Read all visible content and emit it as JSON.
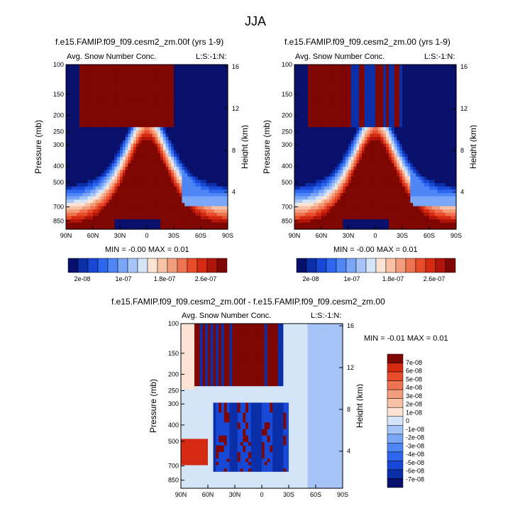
{
  "figure": {
    "super_title": "JJA"
  },
  "palettes": {
    "abs": [
      "#08106b",
      "#0b2fa8",
      "#1848d6",
      "#2e67ef",
      "#4f86f5",
      "#79a6f7",
      "#a6c4f7",
      "#d5e5f8",
      "#fde3d4",
      "#f9c2a6",
      "#f49d7c",
      "#ee7350",
      "#e84c2a",
      "#d52a12",
      "#b1150a",
      "#7f0703"
    ],
    "diff": [
      "#08106b",
      "#0b2fa8",
      "#1848d6",
      "#2e67ef",
      "#4f86f5",
      "#79a6f7",
      "#a6c4f7",
      "#d5e5f8",
      "#fde3d4",
      "#f9c2a6",
      "#f49d7c",
      "#ee7350",
      "#e84c2a",
      "#d52a12",
      "#7f0703"
    ]
  },
  "chart_data": [
    {
      "type": "heatmap",
      "title": "f.e15.FAMIP.f09_f09.cesm2_zm.00f (yrs 1-9)",
      "left_label": "Avg. Snow Number Conc.",
      "right_label": "L:S:-1:N:",
      "xlabel": "",
      "ylabel": "Pressure (mb)",
      "y2label": "Height (km)",
      "x_ticks": [
        "90N",
        "60N",
        "30N",
        "0",
        "30S",
        "60S",
        "90S"
      ],
      "y_ticks": [
        "100",
        "150",
        "200",
        "250",
        "300",
        "400",
        "500",
        "700",
        "850"
      ],
      "y_ticks_values": [
        100,
        150,
        200,
        250,
        300,
        400,
        500,
        700,
        850
      ],
      "y2_ticks": [
        "16",
        "12",
        "8",
        "4"
      ],
      "y2_ticks_values": [
        16,
        12,
        8,
        4
      ],
      "xlim": [
        90,
        -90
      ],
      "ylim": [
        100,
        950
      ],
      "stats": "MIN =  -0.00   MAX =  0.01",
      "colorbar": {
        "labels": [
          "2e-08",
          "1e-07",
          "1.8e-07",
          "2.6e-07"
        ]
      },
      "variant": "a"
    },
    {
      "type": "heatmap",
      "title": "f.e15.FAMIP.f09_f09.cesm2_zm.00 (yrs 1-9)",
      "left_label": "Avg. Snow Number Conc.",
      "right_label": "L:S:-1:N:",
      "xlabel": "",
      "ylabel": "Pressure (mb)",
      "y2label": "Height (km)",
      "x_ticks": [
        "90N",
        "60N",
        "30N",
        "0",
        "30S",
        "60S",
        "90S"
      ],
      "y_ticks": [
        "100",
        "150",
        "200",
        "250",
        "300",
        "400",
        "500",
        "700",
        "850"
      ],
      "y_ticks_values": [
        100,
        150,
        200,
        250,
        300,
        400,
        500,
        700,
        850
      ],
      "y2_ticks": [
        "16",
        "12",
        "8",
        "4"
      ],
      "y2_ticks_values": [
        16,
        12,
        8,
        4
      ],
      "xlim": [
        90,
        -90
      ],
      "ylim": [
        100,
        950
      ],
      "stats": "MIN =  -0.00   MAX =  0.01",
      "colorbar": {
        "labels": [
          "2e-08",
          "1e-07",
          "1.8e-07",
          "2.6e-07"
        ]
      },
      "variant": "b"
    },
    {
      "type": "heatmap",
      "title": "f.e15.FAMIP.f09_f09.cesm2_zm.00f - f.e15.FAMIP.f09_f09.cesm2_zm.00",
      "left_label": "Avg. Snow Number Conc.",
      "right_label": "L:S:-1:N:",
      "xlabel": "",
      "ylabel": "Pressure (mb)",
      "y2label": "Height (km)",
      "x_ticks": [
        "90N",
        "60N",
        "30N",
        "0",
        "30S",
        "60S",
        "90S"
      ],
      "y_ticks": [
        "100",
        "150",
        "200",
        "250",
        "300",
        "400",
        "500",
        "700",
        "850"
      ],
      "y_ticks_values": [
        100,
        150,
        200,
        250,
        300,
        400,
        500,
        700,
        850
      ],
      "y2_ticks": [
        "16",
        "12",
        "8",
        "4"
      ],
      "y2_ticks_values": [
        16,
        12,
        8,
        4
      ],
      "xlim": [
        90,
        -90
      ],
      "ylim": [
        100,
        950
      ],
      "stats": "MIN =  -0.01   MAX =  0.01",
      "colorbar": {
        "labels": [
          "7e-08",
          "6e-08",
          "5e-08",
          "4e-08",
          "3e-08",
          "2e-08",
          "1e-08",
          "0",
          "-1e-08",
          "-2e-08",
          "-3e-08",
          "-4e-08",
          "-5e-08",
          "-6e-08",
          "-7e-08"
        ]
      },
      "variant": "diff"
    }
  ]
}
